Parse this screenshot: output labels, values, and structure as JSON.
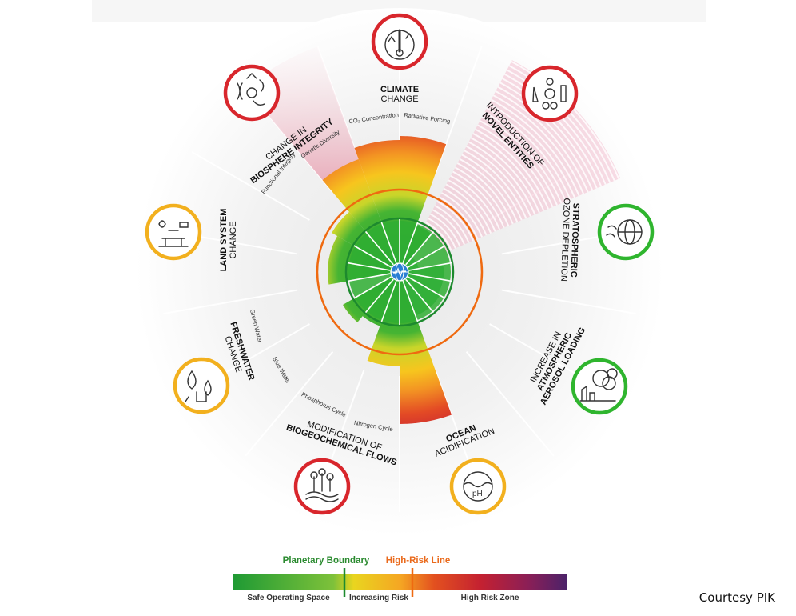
{
  "boundaries": [
    {
      "key": "climate",
      "title_bold": "CLIMATE",
      "title_sub": "CHANGE",
      "status": "red",
      "sub_labels": [
        "CO₂ Concentration",
        "Radiative Forcing"
      ]
    },
    {
      "key": "novel",
      "title_prefix": "INTRODUCTION OF",
      "title_bold": "NOVEL ENTITIES",
      "status": "red"
    },
    {
      "key": "ozone",
      "title_bold": "STRATOSPHERIC",
      "title_sub": "OZONE DEPLETION",
      "status": "green"
    },
    {
      "key": "aerosol",
      "title_prefix": "INCREASE IN",
      "title_bold": "ATMOSPHERIC",
      "title_bold2": "AEROSOL LOADING",
      "status": "green"
    },
    {
      "key": "ocean",
      "title_bold": "OCEAN",
      "title_sub": "ACIDIFICATION",
      "status": "yellow"
    },
    {
      "key": "biogeo",
      "title_prefix": "MODIFICATION OF",
      "title_bold": "BIOGEOCHEMICAL FLOWS",
      "status": "red",
      "sub_labels": [
        "Phosphorus Cycle",
        "Nitrogen Cycle"
      ]
    },
    {
      "key": "freshwater",
      "title_bold": "FRESHWATER",
      "title_sub": "CHANGE",
      "status": "yellow",
      "sub_labels": [
        "Green Water",
        "Blue Water"
      ]
    },
    {
      "key": "land",
      "title_bold": "LAND SYSTEM",
      "title_sub": "CHANGE",
      "status": "yellow"
    },
    {
      "key": "biosphere",
      "title_prefix": "CHANGE IN",
      "title_bold": "BIOSPHERE INTEGRITY",
      "status": "red",
      "sub_labels": [
        "Functional Integrity",
        "Genetic Diversity"
      ]
    }
  ],
  "colors": {
    "red": "#d8262c",
    "yellow": "#f2b01e",
    "green": "#2fb52e",
    "safe": "#2e9b35",
    "risk": "#f5a623",
    "high": "#d12b2b",
    "purple": "#5a1f64",
    "orange_line": "#ef6a10"
  },
  "legend": {
    "planetary_boundary": "Planetary Boundary",
    "high_risk_line": "High-Risk Line",
    "safe": "Safe Operating Space",
    "increasing": "Increasing Risk",
    "high": "High Risk Zone"
  },
  "credit": "Courtesy PIK"
}
